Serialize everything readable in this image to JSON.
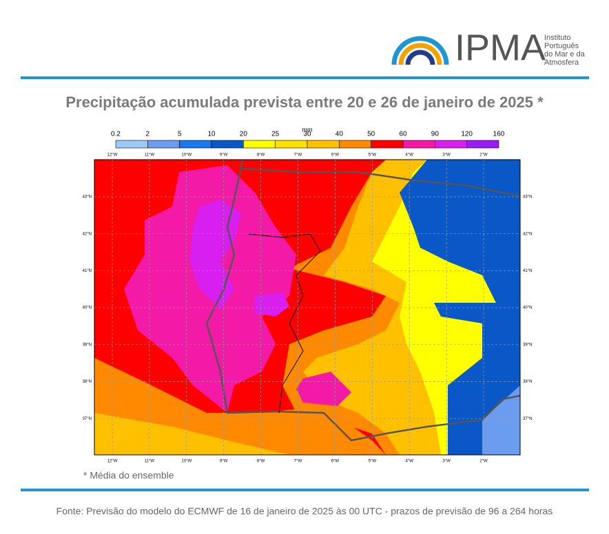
{
  "logo": {
    "name": "IPMA",
    "tagline": [
      "Instituto",
      "Português",
      "do Mar e da",
      "Atmosfera"
    ]
  },
  "title": "Precipitação acumulada prevista entre 20 e 26 de janeiro de 2025 *",
  "colorbar": {
    "unit": "mm",
    "ticks": [
      0.2,
      2,
      5,
      10,
      20,
      25,
      30,
      40,
      50,
      60,
      90,
      120,
      160
    ],
    "colors": [
      "#9ccaf7",
      "#6a9cf0",
      "#1a78ef",
      "#0a58c8",
      "#ffff00",
      "#ffe000",
      "#ffc000",
      "#ff8a00",
      "#ff0000",
      "#f31aa8",
      "#d91ef0",
      "#9a1cf5"
    ]
  },
  "map": {
    "lon_labels": [
      "12°W",
      "11°W",
      "10°W",
      "9°W",
      "8°W",
      "7°W",
      "6°W",
      "5°W",
      "4°W",
      "3°W",
      "2°W"
    ],
    "lat_labels": [
      "43°N",
      "42°N",
      "41°N",
      "40°N",
      "39°N",
      "38°N",
      "37°N"
    ]
  },
  "footnote": "* Média do ensemble",
  "source": "Fonte: Previsão do modelo do ECMWF de 16 de janeiro de 2025 às 00 UTC - prazos de previsão de 96 a 264 horas"
}
